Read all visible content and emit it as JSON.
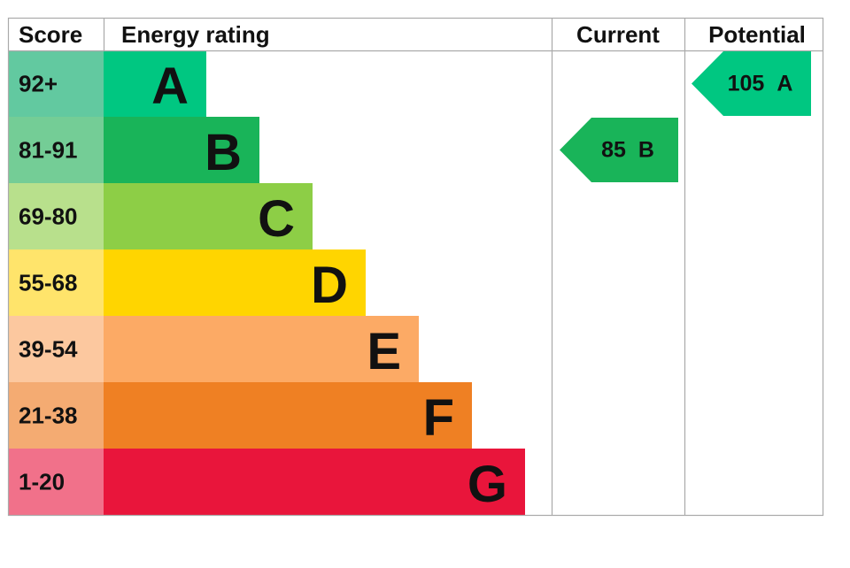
{
  "header": {
    "score": "Score",
    "energy_rating": "Energy rating",
    "current": "Current",
    "potential": "Potential"
  },
  "rows": [
    {
      "score": "92+",
      "letter": "A",
      "color": "#00c781",
      "score_color": "#62c9a0"
    },
    {
      "score": "81-91",
      "letter": "B",
      "color": "#19b459",
      "score_color": "#74cd96"
    },
    {
      "score": "69-80",
      "letter": "C",
      "color": "#8dce46",
      "score_color": "#b8e08c"
    },
    {
      "score": "55-68",
      "letter": "D",
      "color": "#ffd500",
      "score_color": "#ffe46b"
    },
    {
      "score": "39-54",
      "letter": "E",
      "color": "#fcaa65",
      "score_color": "#fcc89f"
    },
    {
      "score": "21-38",
      "letter": "F",
      "color": "#ef8023",
      "score_color": "#f4ab72"
    },
    {
      "score": "1-20",
      "letter": "G",
      "color": "#e9153b",
      "score_color": "#f1718a"
    }
  ],
  "current": {
    "score": 85,
    "rating": "B"
  },
  "potential": {
    "score": 105,
    "rating": "A"
  }
}
